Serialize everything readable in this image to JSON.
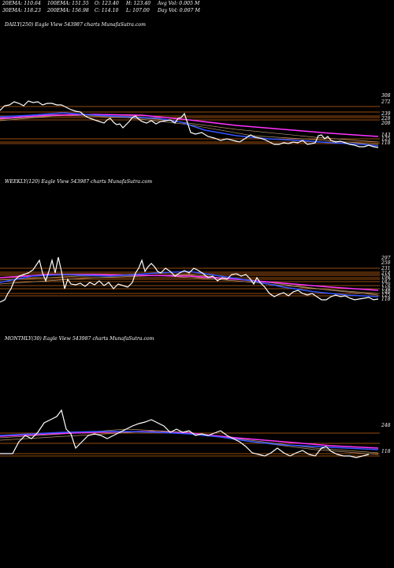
{
  "header": {
    "ema20": "20EMA: 110.64",
    "ema100": "100EMA: 151.55",
    "open": "O: 123.40",
    "high": "H: 123.40",
    "avg_vol": "Avg Vol: 0.005 M",
    "ema30": "30EMA: 118.23",
    "ema200": "200EMA: 156.98",
    "close": "C: 114.10",
    "low": "L: 107.00",
    "day_vol": "Day Vol: 0.007 M"
  },
  "chart_data": [
    {
      "type": "line",
      "title": "DAILY(250) Eagle  View  543987 charts MunafaSutra.com",
      "ylabels": [
        "308",
        "272",
        "239",
        "228",
        "208",
        "143",
        "125",
        "118"
      ],
      "colors": {
        "price": "#ffffff",
        "ema_short": "#3355ff",
        "ema_long": "#ff33ff",
        "level": "#c86414"
      },
      "grid": false
    },
    {
      "type": "line",
      "title": "WEEKLY(120) Eagle  View  543987 charts MunafaSutra.com",
      "ylabels": [
        "297",
        "250",
        "231",
        "214",
        "194",
        "187",
        "170",
        "150",
        "140",
        "125",
        "118"
      ],
      "colors": {
        "price": "#ffffff",
        "ema_short": "#3355ff",
        "ema_long": "#ff33ff",
        "level": "#c86414"
      },
      "grid": false
    },
    {
      "type": "line",
      "title": "MONTHLY(30) Eagle  View  543987 charts MunafaSutra.com",
      "ylabels": [
        "248",
        "118"
      ],
      "colors": {
        "price": "#ffffff",
        "ema_short": "#3355ff",
        "ema_long": "#ff33ff",
        "level": "#c86414"
      },
      "grid": false
    }
  ]
}
